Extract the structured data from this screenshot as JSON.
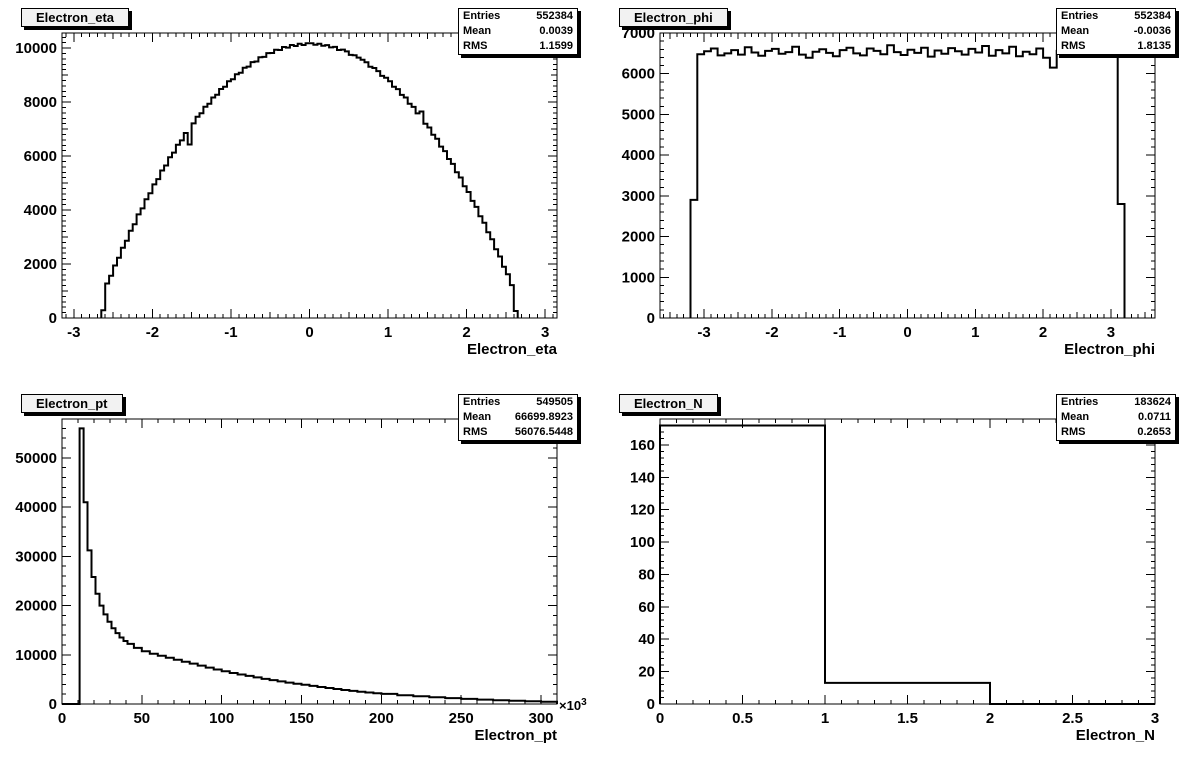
{
  "canvas": {
    "background": "#ffffff",
    "line_color": "#000000"
  },
  "stats_labels": {
    "entries": "Entries",
    "mean": "Mean",
    "rms": "RMS"
  },
  "chart_data": [
    {
      "type": "histogram",
      "id": "electron-eta",
      "title": "Electron_eta",
      "stats": {
        "entries": "552384",
        "mean": "0.0039",
        "rms": "1.1599"
      },
      "x": {
        "title": "Electron_eta",
        "min": -3.15,
        "max": 3.15,
        "major_ticks": [
          -3,
          -2,
          -1,
          0,
          1,
          2,
          3
        ],
        "labels": [
          "-3",
          "-2",
          "-1",
          "0",
          "1",
          "2",
          "3"
        ],
        "minor_step": 0.1,
        "medium_step": 0.5
      },
      "y": {
        "min": 0,
        "max": 10560,
        "major_ticks": [
          0,
          2000,
          4000,
          6000,
          8000,
          10000
        ],
        "labels": [
          "0",
          "2000",
          "4000",
          "6000",
          "8000",
          "10000"
        ],
        "minor_step": 200,
        "medium_step": 1000
      },
      "hist": {
        "xmin": -2.65,
        "bin_width": 0.05,
        "values": [
          290,
          1278,
          1565,
          1945,
          2230,
          2605,
          2865,
          3230,
          3475,
          3840,
          4060,
          4400,
          4620,
          4950,
          5145,
          5465,
          5650,
          5955,
          6130,
          6420,
          6580,
          6855,
          6430,
          7210,
          7455,
          7590,
          7825,
          7940,
          8170,
          8270,
          8485,
          8570,
          8775,
          8845,
          9035,
          9090,
          9270,
          9315,
          9480,
          9505,
          9660,
          9675,
          9815,
          9820,
          9940,
          9930,
          10040,
          10020,
          10115,
          10080,
          10160,
          10115,
          10180,
          10180,
          10125,
          10160,
          10085,
          10110,
          10025,
          10045,
          9930,
          9945,
          9880,
          9750,
          9735,
          9650,
          9570,
          9475,
          9310,
          9265,
          9150,
          8970,
          8905,
          8770,
          8570,
          8480,
          8265,
          8170,
          7935,
          7820,
          7580,
          7650,
          7195,
          7060,
          6790,
          6640,
          6350,
          6185,
          5890,
          5710,
          5400,
          5205,
          4885,
          4670,
          4340,
          4115,
          3770,
          3530,
          3175,
          2920,
          2550,
          2280,
          1900,
          1620,
          1220,
          260
        ]
      }
    },
    {
      "type": "histogram",
      "id": "electron-phi",
      "title": "Electron_phi",
      "stats": {
        "entries": "552384",
        "mean": "-0.0036",
        "rms": "1.8135"
      },
      "x": {
        "title": "Electron_phi",
        "min": -3.65,
        "max": 3.65,
        "major_ticks": [
          -3,
          -2,
          -1,
          0,
          1,
          2,
          3
        ],
        "labels": [
          "-3",
          "-2",
          "-1",
          "0",
          "1",
          "2",
          "3"
        ],
        "minor_step": 0.1,
        "medium_step": 0.5
      },
      "y": {
        "min": 0,
        "max": 7000,
        "major_ticks": [
          0,
          1000,
          2000,
          3000,
          4000,
          5000,
          6000,
          7000
        ],
        "labels": [
          "0",
          "1000",
          "2000",
          "3000",
          "4000",
          "5000",
          "6000",
          "7000"
        ],
        "minor_step": 200
      },
      "hist": {
        "xmin": -3.2,
        "bin_width": 0.1,
        "values": [
          2900,
          6480,
          6550,
          6620,
          6450,
          6500,
          6580,
          6470,
          6650,
          6520,
          6440,
          6560,
          6610,
          6490,
          6530,
          6660,
          6470,
          6390,
          6540,
          6600,
          6510,
          6430,
          6580,
          6640,
          6500,
          6450,
          6620,
          6560,
          6480,
          6700,
          6530,
          6460,
          6590,
          6510,
          6640,
          6420,
          6570,
          6490,
          6630,
          6550,
          6470,
          6610,
          6520,
          6680,
          6440,
          6580,
          6500,
          6660,
          6430,
          6540,
          6480,
          6620,
          6390,
          6150,
          6560,
          6600,
          6450,
          6520,
          6700,
          6580,
          6490,
          6420,
          6650,
          2800
        ]
      }
    },
    {
      "type": "histogram",
      "id": "electron-pt",
      "title": "Electron_pt",
      "stats": {
        "entries": "549505",
        "mean": "66699.8923",
        "rms": "56076.5448"
      },
      "x": {
        "title": "Electron_pt",
        "min": 0,
        "max": 310,
        "major_ticks": [
          0,
          50,
          100,
          150,
          200,
          250,
          300
        ],
        "labels": [
          "0",
          "50",
          "100",
          "150",
          "200",
          "250",
          "300"
        ],
        "minor_step": 10,
        "exp_base": "×10",
        "exp_sup": "3"
      },
      "y": {
        "min": 0,
        "max": 57900,
        "major_ticks": [
          0,
          10000,
          20000,
          30000,
          40000,
          50000
        ],
        "labels": [
          "0",
          "10000",
          "20000",
          "30000",
          "40000",
          "50000"
        ],
        "minor_step": 2000
      },
      "hist": {
        "points": [
          [
            0,
            0
          ],
          [
            11,
            56000
          ],
          [
            13.5,
            41000
          ],
          [
            16,
            31200
          ],
          [
            18.5,
            25800
          ],
          [
            21,
            22400
          ],
          [
            23.5,
            20000
          ],
          [
            26,
            18200
          ],
          [
            28.5,
            16700
          ],
          [
            31,
            15400
          ],
          [
            33.5,
            14400
          ],
          [
            36,
            13500
          ],
          [
            38.5,
            12800
          ],
          [
            41,
            12200
          ],
          [
            45,
            11400
          ],
          [
            50,
            10700
          ],
          [
            55,
            10200
          ],
          [
            60,
            9800
          ],
          [
            65,
            9400
          ],
          [
            70,
            9000
          ],
          [
            75,
            8600
          ],
          [
            80,
            8200
          ],
          [
            85,
            7800
          ],
          [
            90,
            7400
          ],
          [
            95,
            7000
          ],
          [
            100,
            6650
          ],
          [
            105,
            6300
          ],
          [
            110,
            6000
          ],
          [
            115,
            5700
          ],
          [
            120,
            5400
          ],
          [
            125,
            5100
          ],
          [
            130,
            4850
          ],
          [
            135,
            4600
          ],
          [
            140,
            4350
          ],
          [
            145,
            4120
          ],
          [
            150,
            3900
          ],
          [
            155,
            3680
          ],
          [
            160,
            3460
          ],
          [
            165,
            3250
          ],
          [
            170,
            3050
          ],
          [
            175,
            2850
          ],
          [
            180,
            2670
          ],
          [
            185,
            2500
          ],
          [
            190,
            2340
          ],
          [
            195,
            2190
          ],
          [
            200,
            2050
          ],
          [
            210,
            1790
          ],
          [
            220,
            1570
          ],
          [
            230,
            1380
          ],
          [
            240,
            1200
          ],
          [
            250,
            1040
          ],
          [
            260,
            900
          ],
          [
            270,
            780
          ],
          [
            280,
            670
          ],
          [
            290,
            570
          ],
          [
            300,
            470
          ]
        ]
      }
    },
    {
      "type": "histogram",
      "id": "electron-n",
      "title": "Electron_N",
      "stats": {
        "entries": "183624",
        "mean": "0.0711",
        "rms": "0.2653"
      },
      "x": {
        "title": "Electron_N",
        "min": 0,
        "max": 3,
        "major_ticks": [
          0,
          0.5,
          1,
          1.5,
          2,
          2.5,
          3
        ],
        "labels": [
          "0",
          "0.5",
          "1",
          "1.5",
          "2",
          "2.5",
          "3"
        ],
        "minor_step": 0.1
      },
      "y": {
        "min": 0,
        "max": 176,
        "major_ticks": [
          0,
          20,
          40,
          60,
          80,
          100,
          120,
          140,
          160
        ],
        "labels": [
          "0",
          "20",
          "40",
          "60",
          "80",
          "100",
          "120",
          "140",
          "160"
        ],
        "minor_step": 4
      },
      "hist": {
        "xmin": 0,
        "bin_width": 1,
        "values": [
          172,
          13,
          0
        ]
      }
    }
  ]
}
